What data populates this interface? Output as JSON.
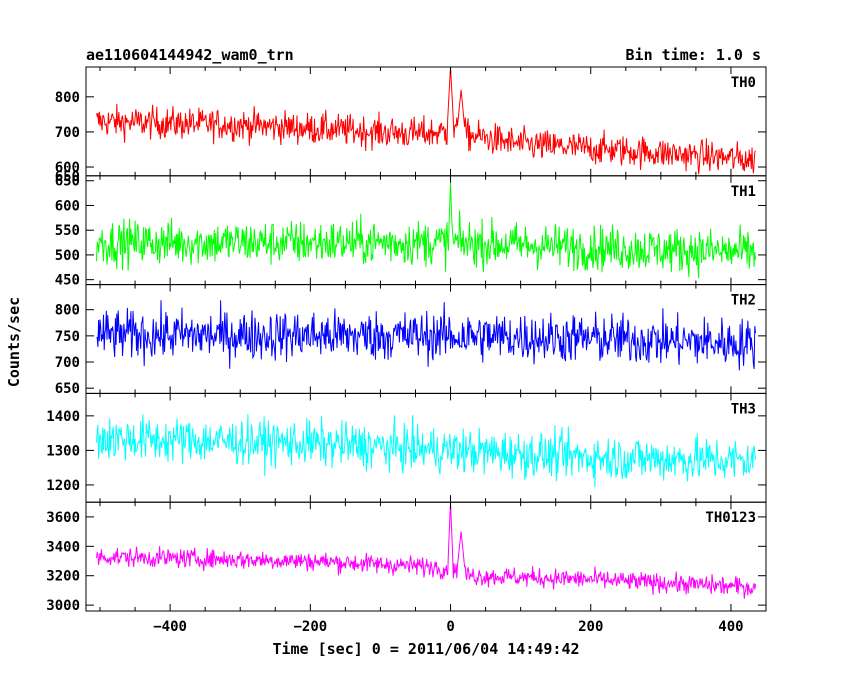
{
  "header": {
    "title": "ae110604144942_wam0_trn",
    "bin_time": "Bin time: 1.0 s"
  },
  "chart_data": {
    "type": "line",
    "xlabel": "Time [sec] 0 = 2011/06/04 14:49:42",
    "ylabel": "Counts/sec",
    "xlim": [
      -520,
      450
    ],
    "x_range_data": [
      -505,
      435
    ],
    "bin_seconds": 1.0,
    "xticks": [
      -400,
      -200,
      0,
      200,
      400
    ],
    "panels": [
      {
        "name": "TH0",
        "color": "#ff0000",
        "ylim": [
          575,
          885
        ],
        "yticks": [
          600,
          700,
          800
        ],
        "top_tick_label": "",
        "trend": [
          [
            -505,
            730
          ],
          [
            -300,
            720
          ],
          [
            -50,
            695
          ],
          [
            0,
            700
          ],
          [
            100,
            665
          ],
          [
            300,
            640
          ],
          [
            435,
            620
          ]
        ],
        "noise": 38,
        "spike": [
          {
            "x": 0,
            "peak": 885,
            "width": 4
          },
          {
            "x": 15,
            "peak": 820,
            "width": 5
          }
        ]
      },
      {
        "name": "TH1",
        "color": "#00ff00",
        "ylim": [
          440,
          660
        ],
        "yticks": [
          450,
          500,
          550,
          600,
          650
        ],
        "top_tick_label": "650",
        "trend": [
          [
            -505,
            525
          ],
          [
            0,
            525
          ],
          [
            200,
            515
          ],
          [
            435,
            505
          ]
        ],
        "noise": 38,
        "spike": [
          {
            "x": 0,
            "peak": 645,
            "width": 2
          }
        ]
      },
      {
        "name": "TH2",
        "color": "#0000ff",
        "ylim": [
          640,
          848
        ],
        "yticks": [
          650,
          700,
          750,
          800
        ],
        "top_tick_label": "",
        "trend": [
          [
            -505,
            752
          ],
          [
            0,
            750
          ],
          [
            200,
            745
          ],
          [
            435,
            735
          ]
        ],
        "noise": 40,
        "spike": []
      },
      {
        "name": "TH3",
        "color": "#00ffff",
        "ylim": [
          1150,
          1465
        ],
        "yticks": [
          1200,
          1300,
          1400
        ],
        "top_tick_label": "",
        "trend": [
          [
            -505,
            1335
          ],
          [
            -200,
            1320
          ],
          [
            0,
            1300
          ],
          [
            200,
            1280
          ],
          [
            435,
            1270
          ]
        ],
        "noise": 55,
        "spike": []
      },
      {
        "name": "TH0123",
        "color": "#ff00ff",
        "ylim": [
          2960,
          3700
        ],
        "yticks": [
          3000,
          3200,
          3400,
          3600
        ],
        "top_tick_label": "",
        "trend": [
          [
            -505,
            3330
          ],
          [
            -200,
            3300
          ],
          [
            -20,
            3260
          ],
          [
            30,
            3200
          ],
          [
            200,
            3175
          ],
          [
            435,
            3120
          ]
        ],
        "noise": 55,
        "spike": [
          {
            "x": 0,
            "peak": 3700,
            "width": 3
          },
          {
            "x": 15,
            "peak": 3500,
            "width": 5
          }
        ]
      }
    ]
  }
}
